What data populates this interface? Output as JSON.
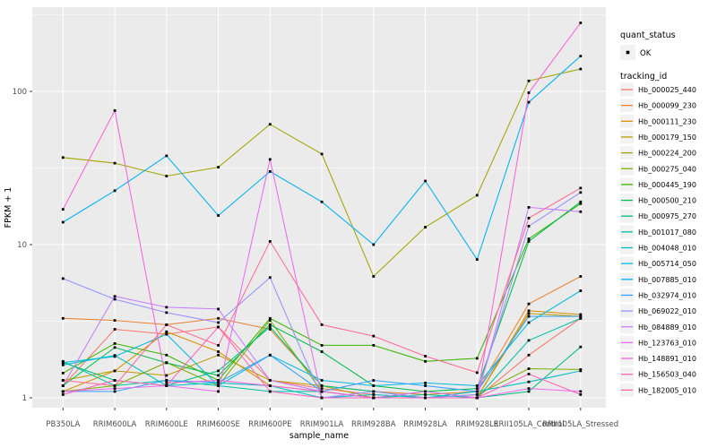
{
  "chart_data": {
    "type": "line",
    "title": "",
    "xlabel": "sample_name",
    "ylabel": "FPKM + 1",
    "y_scale": "log10",
    "y_major_ticks": [
      1,
      10,
      100
    ],
    "y_minor_ticks": [
      3.162,
      31.62,
      316.2
    ],
    "ylim": [
      1,
      320
    ],
    "grid": "on",
    "legend_position": "right",
    "point_shape": "black-square",
    "categories": [
      "PB350LA",
      "RRIM600LA",
      "RRIM600LE",
      "RRIM600SE",
      "RRIM600PE",
      "RRIM901LA",
      "RRIM928BA",
      "RRIM928LA",
      "RRIM928LE",
      "RRII105LA_Control",
      "RRII105LA_Stressed"
    ],
    "series": [
      {
        "name": "Hb_000025_440",
        "color": "#F8766D",
        "values": [
          1.2,
          2.8,
          2.6,
          2.9,
          1.3,
          1.15,
          1.05,
          1.0,
          1.0,
          1.9,
          3.3
        ]
      },
      {
        "name": "Hb_000099_230",
        "color": "#EA8331",
        "values": [
          3.3,
          3.2,
          3.0,
          3.3,
          2.8,
          1.2,
          1.1,
          1.05,
          1.1,
          4.1,
          6.2
        ]
      },
      {
        "name": "Hb_000111_230",
        "color": "#D89000",
        "values": [
          1.1,
          1.5,
          2.7,
          2.0,
          1.2,
          1.1,
          1.0,
          1.1,
          1.0,
          3.7,
          3.5
        ]
      },
      {
        "name": "Hb_000179_150",
        "color": "#C09B00",
        "values": [
          1.3,
          1.5,
          1.4,
          1.9,
          1.3,
          1.2,
          1.0,
          1.1,
          1.0,
          3.55,
          3.4
        ]
      },
      {
        "name": "Hb_000224_200",
        "color": "#A3A500",
        "values": [
          37,
          34,
          28,
          32,
          61,
          39,
          6.2,
          13,
          21,
          117,
          140
        ]
      },
      {
        "name": "Hb_000275_040",
        "color": "#7CAE00",
        "values": [
          1.1,
          1.2,
          1.7,
          1.2,
          3.2,
          1.1,
          1.0,
          1.0,
          1.05,
          1.55,
          1.53
        ]
      },
      {
        "name": "Hb_000445_190",
        "color": "#39B600",
        "values": [
          1.45,
          2.26,
          1.9,
          1.3,
          3.3,
          2.2,
          2.2,
          1.73,
          1.81,
          10.9,
          18.5
        ]
      },
      {
        "name": "Hb_000500_210",
        "color": "#00BB4E",
        "values": [
          1.2,
          2.13,
          1.69,
          1.4,
          3.0,
          2.0,
          1.2,
          1.1,
          1.15,
          10.5,
          19
        ]
      },
      {
        "name": "Hb_000975_270",
        "color": "#00BF7D",
        "values": [
          1.7,
          1.3,
          1.2,
          1.5,
          2.9,
          1.2,
          1.1,
          1.0,
          1.0,
          1.1,
          2.15
        ]
      },
      {
        "name": "Hb_001017_080",
        "color": "#00C1A3",
        "values": [
          1.73,
          1.2,
          1.3,
          1.2,
          1.1,
          1.1,
          1.0,
          1.05,
          1.0,
          2.37,
          3.3
        ]
      },
      {
        "name": "Hb_004048_010",
        "color": "#00BFC4",
        "values": [
          1.64,
          1.89,
          1.2,
          1.25,
          1.2,
          1.0,
          1.05,
          1.0,
          1.1,
          1.27,
          1.5
        ]
      },
      {
        "name": "Hb_005714_050",
        "color": "#00BAE0",
        "values": [
          1.7,
          1.86,
          2.6,
          1.2,
          1.9,
          1.3,
          1.2,
          1.25,
          1.2,
          3.1,
          5.0
        ]
      },
      {
        "name": "Hb_007885_010",
        "color": "#00B0F6",
        "values": [
          14,
          22.5,
          38,
          15.5,
          30,
          19,
          10,
          26,
          8,
          85,
          170
        ]
      },
      {
        "name": "Hb_032974_010",
        "color": "#35A2FF",
        "values": [
          1.1,
          1.1,
          1.3,
          1.26,
          1.9,
          1.1,
          1.3,
          1.2,
          1.1,
          3.4,
          3.4
        ]
      },
      {
        "name": "Hb_069022_010",
        "color": "#9590FF",
        "values": [
          6.0,
          4.4,
          3.6,
          3.1,
          6.1,
          1.0,
          1.1,
          1.0,
          1.05,
          13.2,
          21.9
        ]
      },
      {
        "name": "Hb_084889_010",
        "color": "#C77CFF",
        "values": [
          1.2,
          4.6,
          3.9,
          3.8,
          1.3,
          1.1,
          1.0,
          1.1,
          1.0,
          17.5,
          16.4
        ]
      },
      {
        "name": "Hb_123763_010",
        "color": "#E76BF3",
        "values": [
          1.1,
          1.15,
          1.2,
          1.1,
          36,
          1.0,
          1.0,
          1.0,
          1.0,
          1.15,
          1.1
        ]
      },
      {
        "name": "Hb_148891_010",
        "color": "#FA62DB",
        "values": [
          17,
          75,
          1.25,
          1.3,
          1.2,
          1.1,
          1.0,
          1.0,
          1.0,
          98,
          280
        ]
      },
      {
        "name": "Hb_156503_040",
        "color": "#FF62BC",
        "values": [
          1.05,
          1.3,
          1.2,
          2.9,
          1.1,
          1.0,
          1.0,
          1.0,
          1.0,
          1.43,
          1.05
        ]
      },
      {
        "name": "Hb_182005_010",
        "color": "#FF6A98",
        "values": [
          1.3,
          1.2,
          3.0,
          2.2,
          10.5,
          3.0,
          2.53,
          1.87,
          1.46,
          14.9,
          23.4
        ]
      }
    ]
  },
  "legend": {
    "quant_status_title": "quant_status",
    "quant_status_items": [
      {
        "label": "OK",
        "marker": "black-square"
      }
    ],
    "tracking_id_title": "tracking_id"
  },
  "colors": {
    "page_bg": "#FFFFFF",
    "panel_bg": "#EBEBEB",
    "grid": "#FFFFFF",
    "legend_key_bg": "#F2F2F2",
    "tick_label": "#4D4D4D",
    "axis_title": "#000000",
    "point": "#000000"
  }
}
